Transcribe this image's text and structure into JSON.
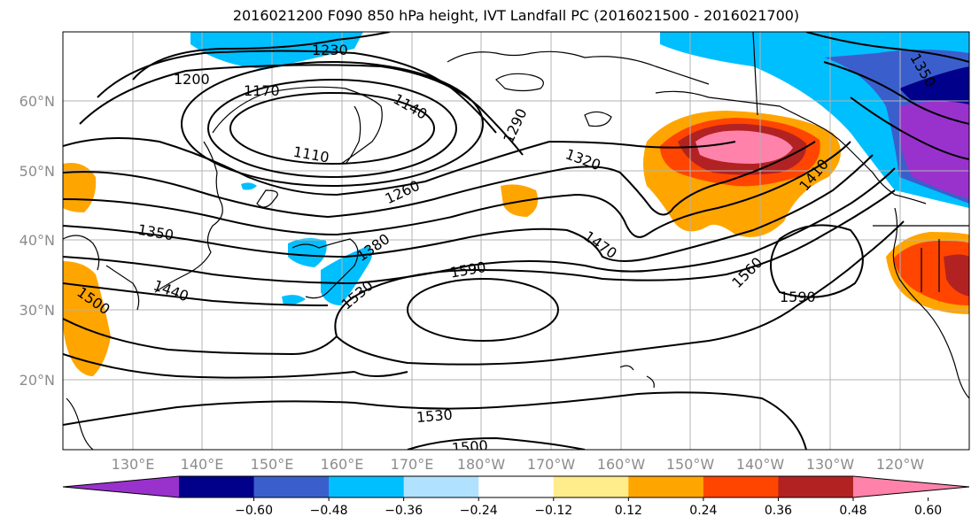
{
  "title": "2016021200 F090 850 hPa height, IVT Landfall PC (2016021500 - 2016021700)",
  "lat_labels": [
    "60°N",
    "50°N",
    "40°N",
    "30°N",
    "20°N"
  ],
  "lon_labels": [
    "130°E",
    "140°E",
    "150°E",
    "160°E",
    "170°E",
    "180°W",
    "170°W",
    "160°W",
    "150°W",
    "140°W",
    "130°W",
    "120°W"
  ],
  "contour_labels": [
    "1230",
    "1200",
    "1170",
    "1140",
    "1110",
    "1290",
    "1320",
    "1260",
    "1350",
    "1380",
    "1410",
    "1440",
    "1470",
    "1500",
    "1530",
    "1560",
    "1590",
    "1590",
    "1530",
    "1500",
    "1350"
  ],
  "colorbar": {
    "colors": [
      "#9932cc",
      "#00008b",
      "#3a5fcd",
      "#00bfff",
      "#b0e2ff",
      "#ffffff",
      "#ffec8b",
      "#ffa500",
      "#ff4500",
      "#b22222",
      "#ff82ab"
    ],
    "tick_labels": [
      "−0.60",
      "−0.48",
      "−0.36",
      "−0.24",
      "−0.12",
      "0.12",
      "0.24",
      "0.36",
      "0.48",
      "0.60"
    ]
  },
  "chart_data": {
    "type": "map",
    "title": "2016021200 F090 850 hPa height, IVT Landfall PC (2016021500 - 2016021700)",
    "field_contours": "850 hPa geopotential height (m)",
    "contour_values": [
      1110,
      1140,
      1170,
      1200,
      1230,
      1260,
      1290,
      1320,
      1350,
      1380,
      1410,
      1440,
      1470,
      1500,
      1530,
      1560,
      1590
    ],
    "shaded_field": "IVT Landfall PC",
    "colorbar_levels": [
      -0.6,
      -0.48,
      -0.36,
      -0.24,
      -0.12,
      0.12,
      0.24,
      0.36,
      0.48,
      0.6
    ],
    "lat_range": [
      "10°N",
      "70°N"
    ],
    "lon_range": [
      "120°E",
      "110°W"
    ],
    "grid": true
  }
}
